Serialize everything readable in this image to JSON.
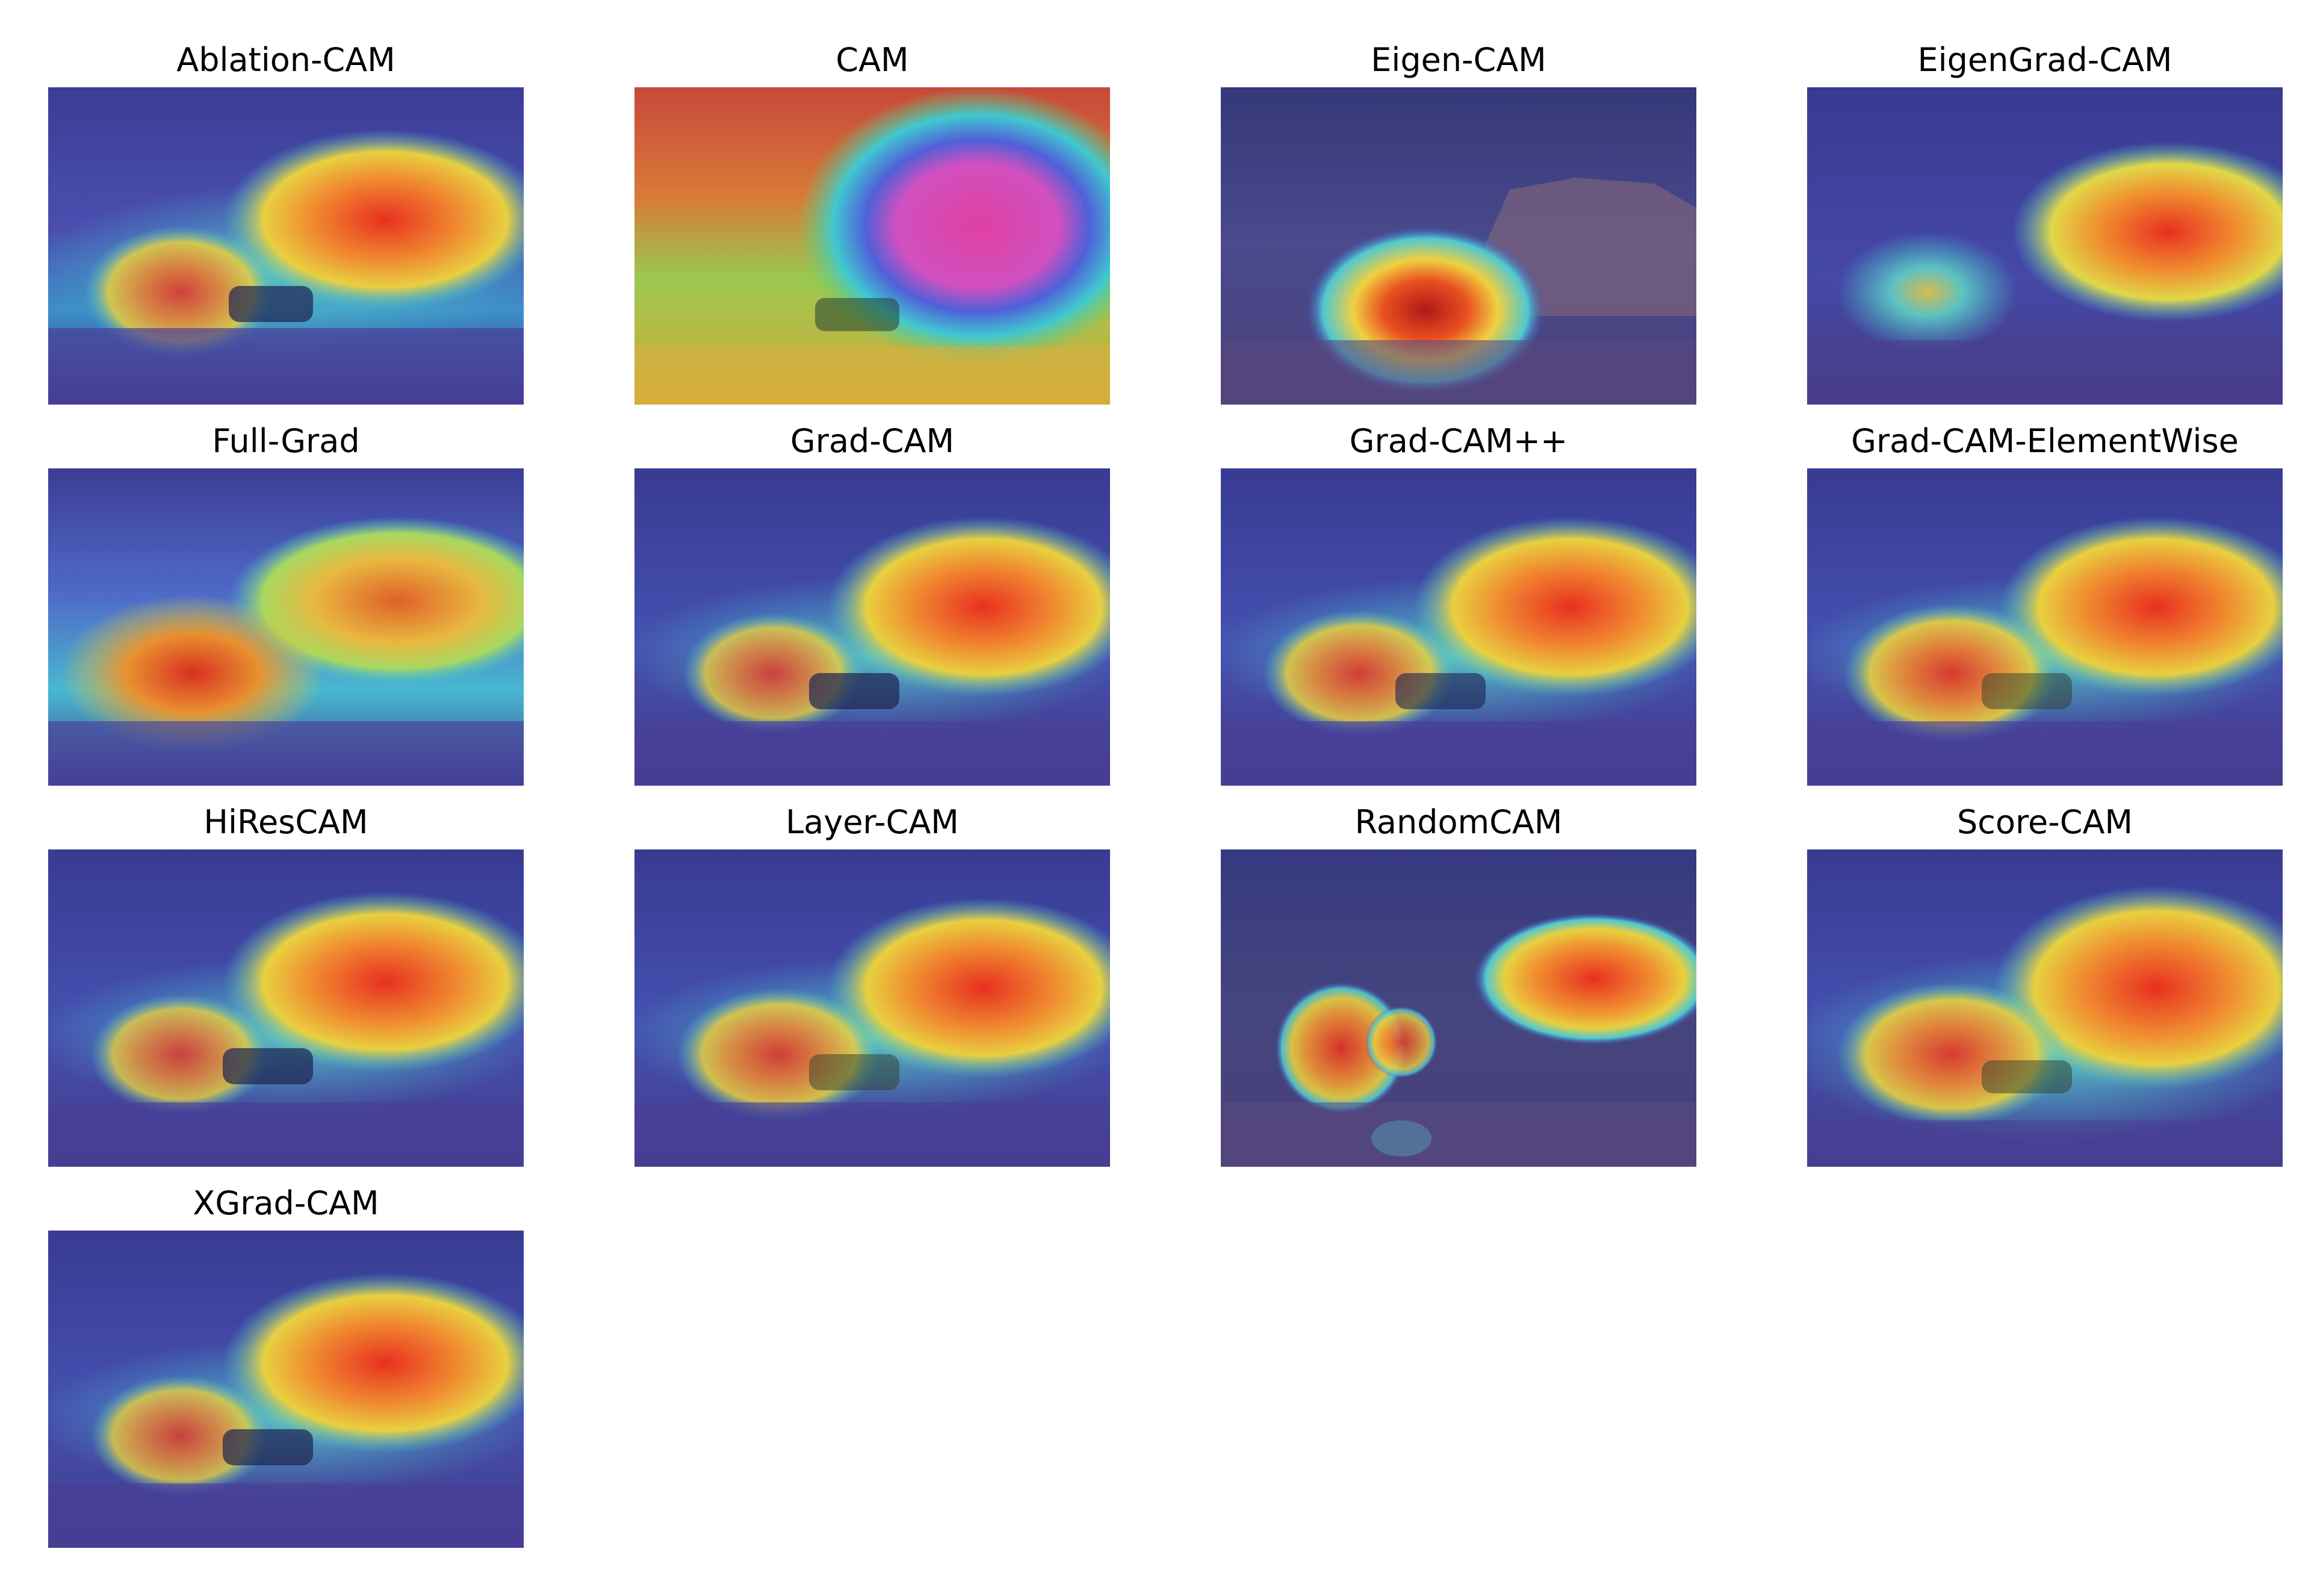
{
  "panels": [
    {
      "title": "Ablation-CAM",
      "scene": "car-rock-desert",
      "overlay": "jet-heatmap",
      "hotspots": [
        {
          "region": "rock",
          "level": 0.95
        },
        {
          "region": "left-bush",
          "level": 0.8
        }
      ]
    },
    {
      "title": "CAM",
      "scene": "car-rock-desert",
      "overlay": "jet-heatmap",
      "hotspots": [
        {
          "region": "rock-center",
          "level": 1.0
        }
      ]
    },
    {
      "title": "Eigen-CAM",
      "scene": "car-rock-desert",
      "overlay": "jet-heatmap",
      "hotspots": [
        {
          "region": "car",
          "level": 1.0
        }
      ]
    },
    {
      "title": "EigenGrad-CAM",
      "scene": "car-rock-desert",
      "overlay": "jet-heatmap",
      "hotspots": [
        {
          "region": "rock",
          "level": 0.95
        },
        {
          "region": "left-bush",
          "level": 0.6
        }
      ]
    },
    {
      "title": "Full-Grad",
      "scene": "car-rock-desert",
      "overlay": "jet-heatmap",
      "hotspots": [
        {
          "region": "rock",
          "level": 0.8
        },
        {
          "region": "left-bush",
          "level": 0.9
        }
      ]
    },
    {
      "title": "Grad-CAM",
      "scene": "car-rock-desert",
      "overlay": "jet-heatmap",
      "hotspots": [
        {
          "region": "rock",
          "level": 0.95
        },
        {
          "region": "left-bush",
          "level": 0.8
        }
      ]
    },
    {
      "title": "Grad-CAM++",
      "scene": "car-rock-desert",
      "overlay": "jet-heatmap",
      "hotspots": [
        {
          "region": "rock",
          "level": 0.95
        },
        {
          "region": "left-bush",
          "level": 0.8
        }
      ]
    },
    {
      "title": "Grad-CAM-ElementWise",
      "scene": "car-rock-desert",
      "overlay": "jet-heatmap",
      "hotspots": [
        {
          "region": "rock",
          "level": 0.95
        },
        {
          "region": "left-bush",
          "level": 0.8
        }
      ]
    },
    {
      "title": "HiResCAM",
      "scene": "car-rock-desert",
      "overlay": "jet-heatmap",
      "hotspots": [
        {
          "region": "rock",
          "level": 0.95
        },
        {
          "region": "left-bush",
          "level": 0.8
        }
      ]
    },
    {
      "title": "Layer-CAM",
      "scene": "car-rock-desert",
      "overlay": "jet-heatmap",
      "hotspots": [
        {
          "region": "rock",
          "level": 0.95
        },
        {
          "region": "left-bush",
          "level": 0.8
        }
      ]
    },
    {
      "title": "RandomCAM",
      "scene": "car-rock-desert",
      "overlay": "jet-heatmap",
      "hotspots": [
        {
          "region": "rock",
          "level": 0.9
        },
        {
          "region": "left-bush",
          "level": 0.8
        }
      ]
    },
    {
      "title": "Score-CAM",
      "scene": "car-rock-desert",
      "overlay": "jet-heatmap",
      "hotspots": [
        {
          "region": "rock",
          "level": 0.9
        },
        {
          "region": "left-bush",
          "level": 0.8
        }
      ]
    },
    {
      "title": "XGrad-CAM",
      "scene": "car-rock-desert",
      "overlay": "jet-heatmap",
      "hotspots": [
        {
          "region": "rock",
          "level": 0.95
        },
        {
          "region": "left-bush",
          "level": 0.8
        }
      ]
    }
  ],
  "colors": {
    "background": "#ffffff",
    "title_text": "#000000",
    "cold": "#3a3a9a",
    "cool": "#45c8d0",
    "warm": "#f0d040",
    "hot": "#e83020",
    "hottest": "#e04090"
  }
}
